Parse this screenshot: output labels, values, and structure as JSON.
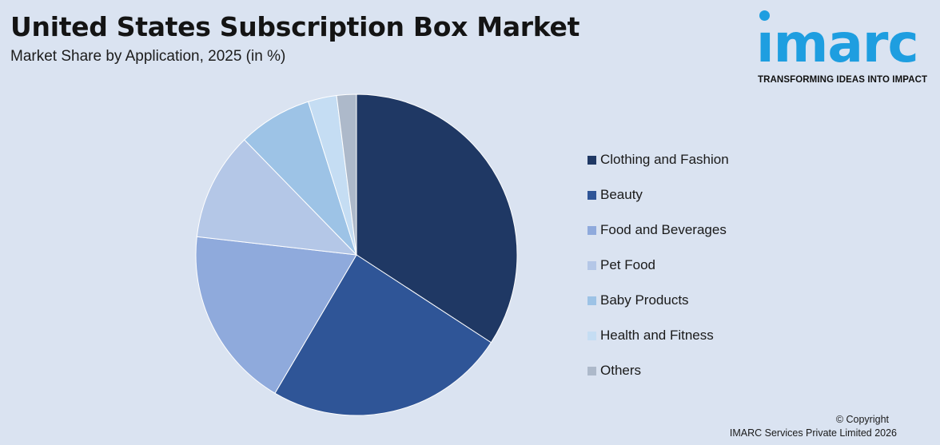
{
  "header": {
    "title": "United States Subscription Box Market",
    "subtitle": "Market Share by Application, 2025 (in %)"
  },
  "logo": {
    "word": "ımarc",
    "tagline": "TRANSFORMING IDEAS INTO IMPACT",
    "color": "#1e9ee0"
  },
  "chart_data": {
    "type": "pie",
    "title": "United States Subscription Box Market",
    "subtitle": "Market Share by Application, 2025 (in %)",
    "legend_position": "right",
    "start_angle_deg": 0,
    "direction": "clockwise",
    "slices": [
      {
        "label": "Clothing and Fashion",
        "value": 34.5,
        "color": "#1f3864"
      },
      {
        "label": "Beauty",
        "value": 24.5,
        "color": "#2f5597"
      },
      {
        "label": "Food and Beverages",
        "value": 18.5,
        "color": "#8faadc"
      },
      {
        "label": "Pet Food",
        "value": 11.0,
        "color": "#b4c7e7"
      },
      {
        "label": "Baby Products",
        "value": 7.5,
        "color": "#9dc3e6"
      },
      {
        "label": "Health and Fitness",
        "value": 2.9,
        "color": "#c5ddf3"
      },
      {
        "label": "Others",
        "value": 2.0,
        "color": "#adb9ca"
      }
    ]
  },
  "footer": {
    "copyright_line1": "© Copyright",
    "copyright_line2": "IMARC Services Private Limited 2026"
  }
}
